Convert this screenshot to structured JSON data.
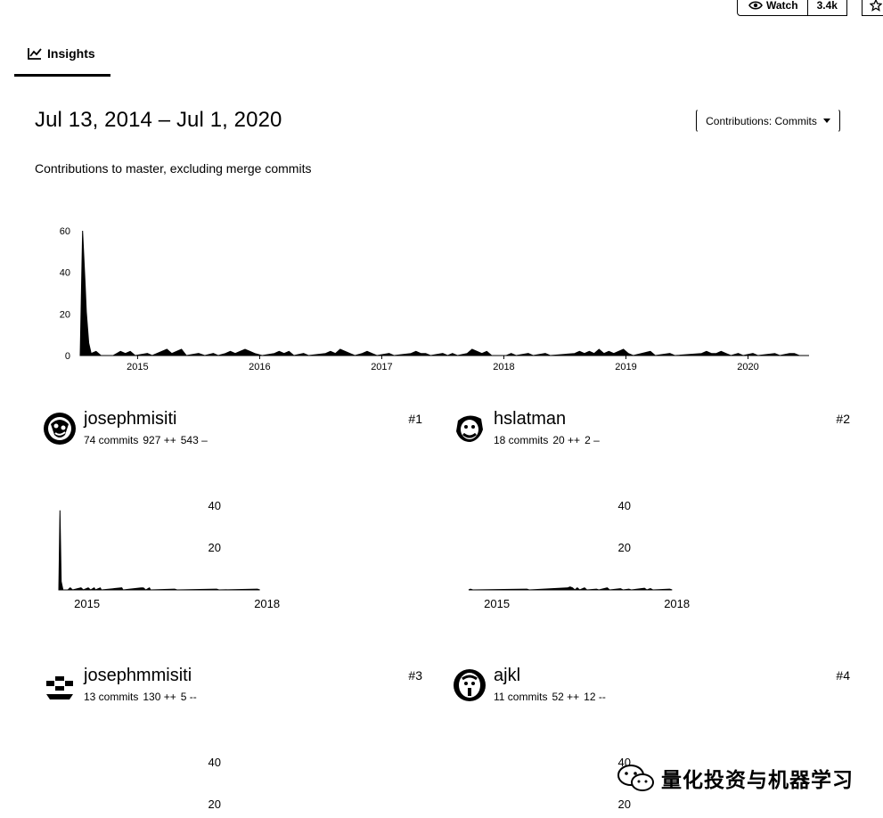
{
  "header": {
    "watch_label": "Watch",
    "watch_count": "3.4k"
  },
  "tabs": {
    "insights_label": "Insights"
  },
  "date_range": "Jul 13, 2014 – Jul 1, 2020",
  "contrib_dropdown_label": "Contributions: Commits",
  "subtitle": "Contributions to master, excluding merge commits",
  "chart_data": [
    {
      "type": "area",
      "title": "",
      "xlabel": "",
      "ylabel": "",
      "ylim": [
        0,
        60
      ],
      "y_ticks": [
        "0",
        "20",
        "40",
        "60"
      ],
      "x_ticks": [
        "2015",
        "2016",
        "2017",
        "2018",
        "2019",
        "2020"
      ],
      "xlim": [
        2014.53,
        2020.5
      ],
      "series": [
        {
          "values": [
            [
              2014.53,
              0
            ],
            [
              2014.55,
              60
            ],
            [
              2014.57,
              35
            ],
            [
              2014.58,
              21
            ],
            [
              2014.6,
              6
            ],
            [
              2014.62,
              1
            ],
            [
              2014.66,
              2
            ],
            [
              2014.7,
              0
            ],
            [
              2014.8,
              0
            ],
            [
              2014.83,
              1
            ],
            [
              2014.86,
              2
            ],
            [
              2014.9,
              1
            ],
            [
              2014.94,
              2
            ],
            [
              2014.98,
              0
            ],
            [
              2015.08,
              1
            ],
            [
              2015.12,
              0
            ],
            [
              2015.24,
              3
            ],
            [
              2015.28,
              1
            ],
            [
              2015.32,
              2
            ],
            [
              2015.36,
              3
            ],
            [
              2015.4,
              0
            ],
            [
              2015.5,
              1
            ],
            [
              2015.55,
              0
            ],
            [
              2015.62,
              1
            ],
            [
              2015.66,
              0
            ],
            [
              2015.72,
              1
            ],
            [
              2015.76,
              2
            ],
            [
              2015.8,
              1
            ],
            [
              2015.84,
              2
            ],
            [
              2015.88,
              3
            ],
            [
              2015.92,
              2
            ],
            [
              2015.96,
              1
            ],
            [
              2016.02,
              0
            ],
            [
              2016.12,
              1
            ],
            [
              2016.16,
              2
            ],
            [
              2016.2,
              1
            ],
            [
              2016.24,
              2
            ],
            [
              2016.28,
              0
            ],
            [
              2016.36,
              1
            ],
            [
              2016.4,
              0
            ],
            [
              2016.54,
              1
            ],
            [
              2016.58,
              2
            ],
            [
              2016.62,
              1
            ],
            [
              2016.66,
              3
            ],
            [
              2016.7,
              2
            ],
            [
              2016.74,
              1
            ],
            [
              2016.78,
              0
            ],
            [
              2016.84,
              1
            ],
            [
              2016.88,
              2
            ],
            [
              2016.92,
              1
            ],
            [
              2016.96,
              0
            ],
            [
              2017.06,
              1
            ],
            [
              2017.1,
              0
            ],
            [
              2017.24,
              1
            ],
            [
              2017.28,
              2
            ],
            [
              2017.32,
              1
            ],
            [
              2017.36,
              1
            ],
            [
              2017.4,
              0
            ],
            [
              2017.5,
              1
            ],
            [
              2017.54,
              0
            ],
            [
              2017.58,
              1
            ],
            [
              2017.62,
              0
            ],
            [
              2017.7,
              1
            ],
            [
              2017.74,
              3
            ],
            [
              2017.78,
              2
            ],
            [
              2017.82,
              1
            ],
            [
              2017.86,
              2
            ],
            [
              2017.9,
              0
            ],
            [
              2018.02,
              0
            ],
            [
              2018.06,
              1
            ],
            [
              2018.1,
              0
            ],
            [
              2018.2,
              1
            ],
            [
              2018.24,
              0
            ],
            [
              2018.34,
              1
            ],
            [
              2018.38,
              0
            ],
            [
              2018.58,
              1
            ],
            [
              2018.62,
              2
            ],
            [
              2018.66,
              1
            ],
            [
              2018.7,
              2
            ],
            [
              2018.74,
              1
            ],
            [
              2018.78,
              3
            ],
            [
              2018.82,
              1
            ],
            [
              2018.86,
              2
            ],
            [
              2018.9,
              1
            ],
            [
              2018.94,
              2
            ],
            [
              2018.98,
              3
            ],
            [
              2019.02,
              1
            ],
            [
              2019.06,
              0
            ],
            [
              2019.2,
              2
            ],
            [
              2019.24,
              0
            ],
            [
              2019.36,
              1
            ],
            [
              2019.4,
              0
            ],
            [
              2019.62,
              1
            ],
            [
              2019.66,
              2
            ],
            [
              2019.7,
              1
            ],
            [
              2019.74,
              1
            ],
            [
              2019.78,
              2
            ],
            [
              2019.82,
              1
            ],
            [
              2019.86,
              0
            ],
            [
              2019.92,
              1
            ],
            [
              2019.96,
              0
            ],
            [
              2020.04,
              1
            ],
            [
              2020.08,
              0
            ],
            [
              2020.22,
              1
            ],
            [
              2020.26,
              0
            ],
            [
              2020.34,
              1
            ],
            [
              2020.38,
              1
            ],
            [
              2020.42,
              0
            ]
          ]
        }
      ]
    },
    {
      "type": "area",
      "ylim": [
        0,
        40
      ],
      "y_ticks": [
        "20",
        "40"
      ],
      "x_ticks": [
        "2015",
        "2018"
      ],
      "xlim": [
        2014.53,
        2020.5
      ],
      "series": [
        {
          "values": [
            [
              2014.53,
              0
            ],
            [
              2014.55,
              38
            ],
            [
              2014.57,
              4
            ],
            [
              2014.6,
              0
            ],
            [
              2014.68,
              0
            ],
            [
              2014.72,
              1
            ],
            [
              2014.76,
              0
            ],
            [
              2014.9,
              1
            ],
            [
              2014.94,
              0
            ],
            [
              2015.02,
              1
            ],
            [
              2015.06,
              0
            ],
            [
              2015.12,
              1
            ],
            [
              2015.14,
              0
            ],
            [
              2015.22,
              1
            ],
            [
              2015.24,
              0
            ],
            [
              2015.58,
              1
            ],
            [
              2015.6,
              0
            ],
            [
              2015.9,
              1
            ],
            [
              2015.94,
              1
            ],
            [
              2015.98,
              0
            ],
            [
              2016.04,
              1
            ],
            [
              2016.06,
              0
            ],
            [
              2016.46,
              0.4
            ],
            [
              2016.5,
              0
            ],
            [
              2017.16,
              0.4
            ],
            [
              2017.2,
              0
            ],
            [
              2017.84,
              0.4
            ],
            [
              2017.88,
              0
            ]
          ]
        }
      ]
    },
    {
      "type": "area",
      "ylim": [
        0,
        40
      ],
      "y_ticks": [
        "20",
        "40"
      ],
      "x_ticks": [
        "2015",
        "2018"
      ],
      "xlim": [
        2014.53,
        2020.5
      ],
      "series": [
        {
          "values": [
            [
              2014.53,
              0
            ],
            [
              2014.56,
              0.4
            ],
            [
              2014.6,
              0
            ],
            [
              2015.5,
              0.4
            ],
            [
              2015.54,
              0
            ],
            [
              2016.18,
              1
            ],
            [
              2016.22,
              1.4
            ],
            [
              2016.26,
              1
            ],
            [
              2016.3,
              0
            ],
            [
              2016.34,
              1
            ],
            [
              2016.38,
              0
            ],
            [
              2016.46,
              1
            ],
            [
              2016.5,
              0
            ],
            [
              2016.66,
              0.4
            ],
            [
              2016.7,
              0
            ],
            [
              2016.84,
              1
            ],
            [
              2016.88,
              0
            ],
            [
              2017.06,
              0.6
            ],
            [
              2017.1,
              0
            ],
            [
              2017.2,
              0.4
            ],
            [
              2017.24,
              0
            ],
            [
              2017.46,
              0.8
            ],
            [
              2017.5,
              0
            ],
            [
              2017.56,
              0.6
            ],
            [
              2017.6,
              0
            ],
            [
              2017.88,
              0.4
            ],
            [
              2017.92,
              0
            ]
          ]
        }
      ]
    },
    {
      "type": "area",
      "ylim": [
        0,
        40
      ],
      "y_ticks": [
        "20",
        "40"
      ],
      "x_ticks": [],
      "series": []
    },
    {
      "type": "area",
      "ylim": [
        0,
        40
      ],
      "y_ticks": [
        "20",
        "40"
      ],
      "x_ticks": [],
      "series": []
    }
  ],
  "contributors": [
    {
      "login": "josephmisiti",
      "commits": "74 commits",
      "additions": "927 ++",
      "deletions": "543 –",
      "rank": "#1"
    },
    {
      "login": "hslatman",
      "commits": "18 commits",
      "additions": "20 ++",
      "deletions": "2 –",
      "rank": "#2"
    },
    {
      "login": "josephmmisiti",
      "commits": "13 commits",
      "additions": "130 ++",
      "deletions": "5 --",
      "rank": "#3"
    },
    {
      "login": "ajkl",
      "commits": "11 commits",
      "additions": "52 ++",
      "deletions": "12 --",
      "rank": "#4"
    }
  ],
  "watermark": {
    "text": "量化投资与机器学习",
    "icon": "wechat-icon"
  }
}
